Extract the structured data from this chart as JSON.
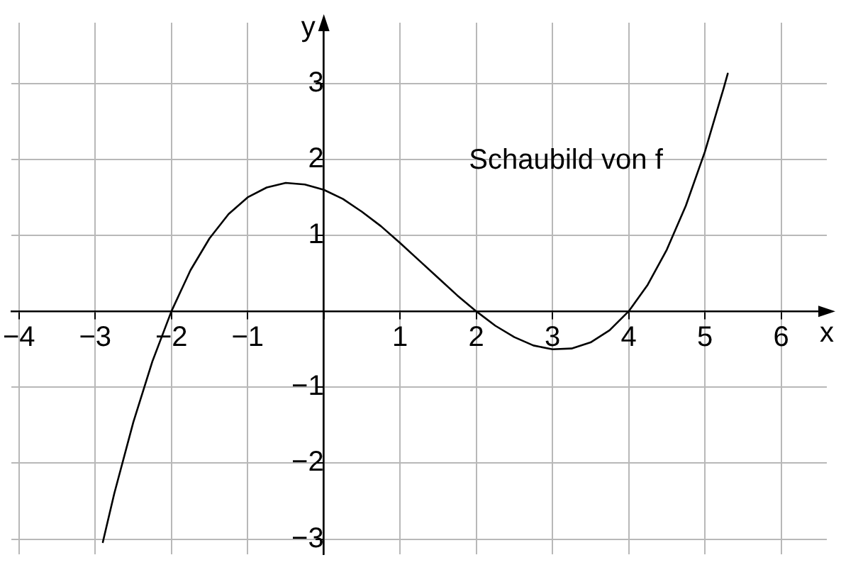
{
  "chart_data": {
    "type": "line",
    "xlabel": "x",
    "ylabel": "y",
    "annotations": [
      "Schaubild von f"
    ],
    "x": [
      -2.9,
      -2.75,
      -2.5,
      -2.25,
      -2,
      -1.75,
      -1.5,
      -1.25,
      -1,
      -0.75,
      -0.5,
      -0.25,
      0,
      0.25,
      0.5,
      0.75,
      1,
      1.25,
      1.5,
      1.75,
      2,
      2.25,
      2.5,
      2.75,
      3,
      3.25,
      3.5,
      3.75,
      4,
      4.25,
      4.5,
      4.75,
      5,
      5.25,
      5.3
    ],
    "series": [
      {
        "color": "#000000",
        "values": [
          -3.04,
          -2.4,
          -1.46,
          -0.66,
          0,
          0.54,
          0.96,
          1.28,
          1.5,
          1.63,
          1.69,
          1.67,
          1.6,
          1.48,
          1.31,
          1.12,
          0.9,
          0.67,
          0.44,
          0.21,
          0,
          -0.19,
          -0.34,
          -0.45,
          -0.5,
          -0.49,
          -0.41,
          -0.25,
          0,
          0.35,
          0.81,
          1.39,
          2.1,
          2.95,
          3.13
        ]
      }
    ],
    "xlim": [
      -4.1,
      6.6
    ],
    "ylim": [
      -3.2,
      3.8
    ],
    "xticks": [
      -4,
      -3,
      -2,
      -1,
      {
        "value": 0,
        "label": null
      },
      1,
      2,
      3,
      4,
      5,
      6
    ],
    "yticks": [
      -3,
      -2,
      -1,
      {
        "value": 0,
        "label": null
      },
      1,
      2,
      3
    ],
    "grid": true,
    "legend": false,
    "marker": "none",
    "line_style": "solid"
  }
}
